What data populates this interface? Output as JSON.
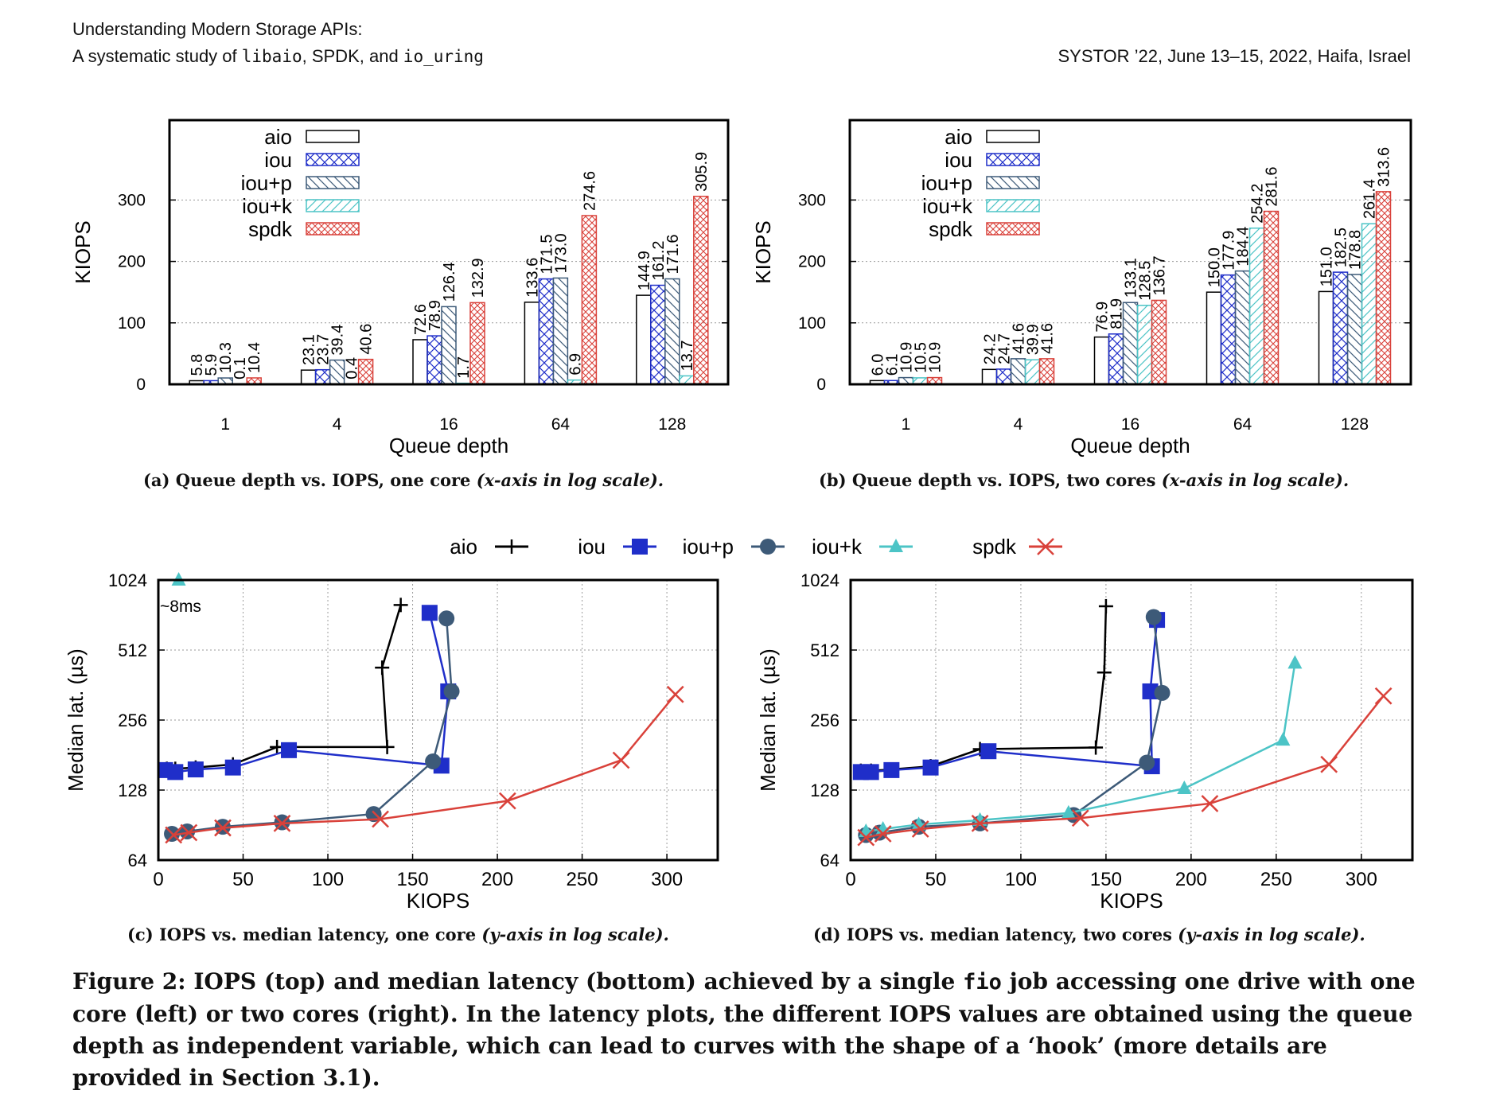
{
  "header": {
    "line1": "Understanding Modern Storage APIs:",
    "line2_prefix": "A systematic study of ",
    "code1": "libaio",
    "sep1": ", SPDK, and ",
    "code2": "io_uring",
    "venue": "SYSTOR ’22, June 13–15, 2022, Haifa, Israel"
  },
  "captions": {
    "a": {
      "text": "(a) Queue depth vs. IOPS, one core ",
      "note": "(x-axis in log scale)."
    },
    "b": {
      "text": "(b) Queue depth vs. IOPS, two cores ",
      "note": "(x-axis in log scale)."
    },
    "c": {
      "text": "(c) IOPS vs. median latency, one core ",
      "note": "(y-axis in log scale)."
    },
    "d": {
      "text": "(d) IOPS vs. median latency, two cores ",
      "note": "(y-axis in log scale)."
    }
  },
  "figure_caption": {
    "part1": "Figure 2: IOPS (top) and median latency (bottom) achieved by a single ",
    "code": "fio",
    "part2": " job accessing one drive with one core (left) or two cores (right). In the latency plots, the different IOPS values are obtained using the queue depth as independent variable, which can lead to curves with the shape of a ‘hook’ (more details are provided in Section 3.1)."
  },
  "colors": {
    "aio": "#000000",
    "iou": "#1f2ec9",
    "iou+p": "#3d5a78",
    "iou+k": "#4cc4c6",
    "spdk": "#d9413a"
  },
  "shared_legend": [
    "aio",
    "iou",
    "iou+p",
    "iou+k",
    "spdk"
  ],
  "chart_data": [
    {
      "id": "a",
      "type": "bar",
      "xlabel": "Queue depth",
      "ylabel": "KIOPS",
      "categories": [
        "1",
        "4",
        "16",
        "64",
        "128"
      ],
      "yticks": [
        0,
        100,
        200,
        300
      ],
      "ylim": [
        0,
        430
      ],
      "legend_position": "top-left",
      "series": [
        {
          "name": "aio",
          "values": [
            5.8,
            23.1,
            72.6,
            133.6,
            144.9
          ],
          "labels": [
            "5.8",
            "23.1",
            "72.6",
            "133.6",
            "144.9"
          ]
        },
        {
          "name": "iou",
          "values": [
            5.9,
            23.7,
            78.9,
            171.5,
            161.2
          ],
          "labels": [
            "5.9",
            "23.7",
            "78.9",
            "171.5",
            "161.2"
          ]
        },
        {
          "name": "iou+p",
          "values": [
            10.3,
            39.4,
            126.4,
            173.0,
            171.6
          ],
          "labels": [
            "10.3",
            "39.4",
            "126.4",
            "173.0",
            "171.6"
          ]
        },
        {
          "name": "iou+k",
          "values": [
            0.1,
            0.4,
            1.7,
            6.9,
            13.7
          ],
          "labels": [
            "0.1",
            "0.4",
            "1.7",
            "6.9",
            "13.7"
          ]
        },
        {
          "name": "spdk",
          "values": [
            10.4,
            40.6,
            132.9,
            274.6,
            305.9
          ],
          "labels": [
            "10.4",
            "40.6",
            "132.9",
            "274.6",
            "305.9"
          ]
        }
      ]
    },
    {
      "id": "b",
      "type": "bar",
      "xlabel": "Queue depth",
      "ylabel": "KIOPS",
      "categories": [
        "1",
        "4",
        "16",
        "64",
        "128"
      ],
      "yticks": [
        0,
        100,
        200,
        300
      ],
      "ylim": [
        0,
        430
      ],
      "legend_position": "top-left",
      "series": [
        {
          "name": "aio",
          "values": [
            6.0,
            24.2,
            76.9,
            150.0,
            151.0
          ],
          "labels": [
            "6.0",
            "24.2",
            "76.9",
            "150.0",
            "151.0"
          ]
        },
        {
          "name": "iou",
          "values": [
            6.1,
            24.7,
            81.9,
            177.9,
            182.5
          ],
          "labels": [
            "6.1",
            "24.7",
            "81.9",
            "177.9",
            "182.5"
          ]
        },
        {
          "name": "iou+p",
          "values": [
            10.9,
            41.6,
            133.1,
            184.4,
            178.8
          ],
          "labels": [
            "10.9",
            "41.6",
            "133.1",
            "184.4",
            "178.8"
          ]
        },
        {
          "name": "iou+k",
          "values": [
            10.5,
            39.9,
            128.5,
            254.2,
            261.4
          ],
          "labels": [
            "10.5",
            "39.9",
            "128.5",
            "254.2",
            "261.4"
          ]
        },
        {
          "name": "spdk",
          "values": [
            10.9,
            41.6,
            136.7,
            281.6,
            313.6
          ],
          "labels": [
            "10.9",
            "41.6",
            "136.7",
            "281.6",
            "313.6"
          ]
        }
      ]
    },
    {
      "id": "c",
      "type": "line",
      "xlabel": "KIOPS",
      "ylabel": "Median lat. (µs)",
      "xlim": [
        0,
        330
      ],
      "xticks": [
        0,
        50,
        100,
        150,
        200,
        250,
        300
      ],
      "ylim": [
        64,
        1024
      ],
      "yscale": "log",
      "yticks": [
        64,
        128,
        256,
        512,
        1024
      ],
      "grid": true,
      "annotation": {
        "text": "~8ms",
        "point": {
          "x": 12,
          "y": 1024
        },
        "series": "iou+k"
      },
      "series": [
        {
          "name": "aio",
          "points": [
            [
              5,
              158
            ],
            [
              10,
              158
            ],
            [
              22,
              160
            ],
            [
              44,
              165
            ],
            [
              70,
              196
            ],
            [
              135,
              196
            ],
            [
              132,
              430
            ],
            [
              143,
              800
            ]
          ]
        },
        {
          "name": "iou",
          "points": [
            [
              4,
              156
            ],
            [
              10,
              153
            ],
            [
              22,
              157
            ],
            [
              44,
              160
            ],
            [
              77,
              190
            ],
            [
              167,
              163
            ],
            [
              171,
              340
            ],
            [
              160,
              740
            ]
          ]
        },
        {
          "name": "iou+p",
          "points": [
            [
              8,
              83
            ],
            [
              17,
              85
            ],
            [
              38,
              89
            ],
            [
              73,
              93
            ],
            [
              127,
              101
            ],
            [
              162,
              170
            ],
            [
              173,
              340
            ],
            [
              170,
              700
            ]
          ]
        },
        {
          "name": "iou+k",
          "points": [
            [
              12,
              1024
            ]
          ]
        },
        {
          "name": "spdk",
          "points": [
            [
              9,
              82
            ],
            [
              18,
              84
            ],
            [
              38,
              88
            ],
            [
              73,
              92
            ],
            [
              131,
              96
            ],
            [
              206,
              115
            ],
            [
              273,
              172
            ],
            [
              305,
              330
            ]
          ]
        }
      ]
    },
    {
      "id": "d",
      "type": "line",
      "xlabel": "KIOPS",
      "ylabel": "Median lat. (µs)",
      "xlim": [
        0,
        330
      ],
      "xticks": [
        0,
        50,
        100,
        150,
        200,
        250,
        300
      ],
      "ylim": [
        64,
        1024
      ],
      "yscale": "log",
      "yticks": [
        64,
        128,
        256,
        512,
        1024
      ],
      "grid": true,
      "series": [
        {
          "name": "aio",
          "points": [
            [
              6,
              155
            ],
            [
              12,
              155
            ],
            [
              24,
              157
            ],
            [
              47,
              162
            ],
            [
              76,
              192
            ],
            [
              144,
              195
            ],
            [
              149,
              410
            ],
            [
              150,
              790
            ]
          ]
        },
        {
          "name": "iou",
          "points": [
            [
              6,
              153
            ],
            [
              12,
              153
            ],
            [
              24,
              156
            ],
            [
              47,
              160
            ],
            [
              81,
              188
            ],
            [
              177,
              162
            ],
            [
              176,
              340
            ],
            [
              180,
              690
            ]
          ]
        },
        {
          "name": "iou+p",
          "points": [
            [
              9,
              82
            ],
            [
              17,
              84
            ],
            [
              40,
              89
            ],
            [
              76,
              92
            ],
            [
              131,
              100
            ],
            [
              174,
              168
            ],
            [
              183,
              335
            ],
            [
              178,
              710
            ]
          ]
        },
        {
          "name": "iou+k",
          "points": [
            [
              9,
              85
            ],
            [
              19,
              87
            ],
            [
              40,
              91
            ],
            [
              76,
              95
            ],
            [
              128,
              102
            ],
            [
              196,
              130
            ],
            [
              254,
              210
            ],
            [
              261,
              450
            ]
          ]
        },
        {
          "name": "spdk",
          "points": [
            [
              9,
              80
            ],
            [
              19,
              83
            ],
            [
              41,
              87
            ],
            [
              76,
              92
            ],
            [
              135,
              97
            ],
            [
              211,
              112
            ],
            [
              281,
              165
            ],
            [
              313,
              325
            ]
          ]
        }
      ]
    }
  ]
}
